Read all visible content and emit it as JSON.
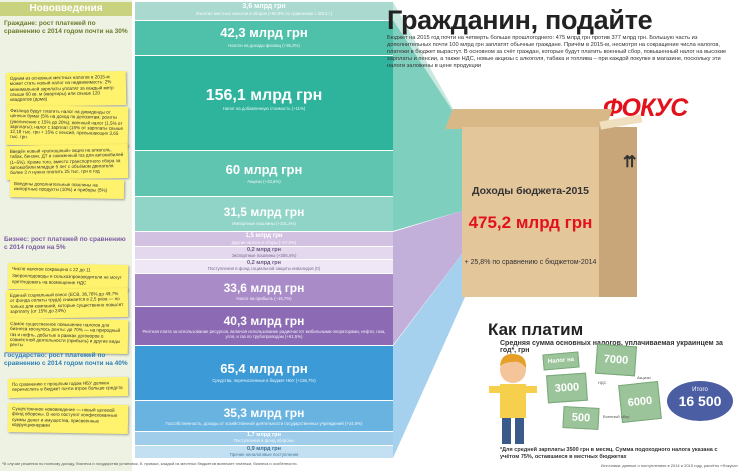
{
  "left": {
    "header": "Нововведения",
    "citizens_title": "Граждане: рост платежей по сравнению с 2014 годом почти на 30%",
    "citizens_notes": [
      "Одним из основных местных налогов в 2015-м может стать новый налог на недвижимость: 2% минимальной зарплаты уплатят за каждый метр свыше 60 кв. м (квартиры) или свыше 120 квадратов (дома)",
      "Физлица будут платить налог на дивиденды от ценных бумаг (5% на доход по депозитам; роялти (увеличение с 15% до 20%); военный налог (1,5% от зарплаты); налог с зарплат (15% от зарплаты свыше 12,18 тыс. грн + 15% с пенсий, превышающих 3,65 тыс. грн",
      "Введён новый «роскошный» акциз на алкоголь, табак, бензин, ДТ и сжиженный газ для автомобилей (1–5%). Кроме того, вместо транспортного сбора за автомобили младше 5 лет с объёмом двигателя более 3 л нужно платить 25 тыс. грн в год",
      "Введены дополнительные пошлины на импортные продукты (10%) и приборы (5%)"
    ],
    "business_title": "Бизнес: рост платежей по сравнению с 2014 годом на 5%",
    "business_notes": [
      "Число налогов сокращено с 22 до 11",
      "Звероплодоводы и сельхозпроизводители не могут претендовать на возмещение НДС",
      "Единый социальный взнос (ЕСВ, 36,76% до 49,7% от фонда оплаты труда) снижается в 2,5 раза — но только для компаний, которые существенно повысят зарплату (от 15% до 24%)",
      "Самое существенное повышение налогов для бизнеса коснулось ренты: до 70% — на природный газ и нефть, добытые в рамках договоров о совместной деятельности (прибыль) и другие виды ренты"
    ],
    "state_title": "Государство: рост платежей по сравнению с 2014 годом почти на 40%",
    "state_notes": [
      "По сравнению с прошлым годом НБУ должен перечислить в бюджет почти втрое больше средств",
      "Существенное нововведение — новый целевой фонд обороны. В него поступят конфискованные суммы денег и имущества, присвоенные коррупционерами"
    ]
  },
  "bands": [
    {
      "value": "3,6 млрд грн",
      "desc": "Изъятие местных налогов и сборов (+60,9% по сравнению с 2014 г.)"
    },
    {
      "value": "42,3 млрд грн",
      "desc": "Налоги на доходы физлиц (+35,2%)"
    },
    {
      "value": "156,1 млрд грн",
      "desc": "Налог на добавленную стоимость (+11%)"
    },
    {
      "value": "60 млрд грн",
      "desc": "Акцизы (+33,6%)"
    },
    {
      "value": "31,5 млрд грн",
      "desc": "Импортные пошлины (+101,4%)"
    },
    {
      "value": "1,5 млрд грн",
      "desc": "Другие налоги и сборы (–27,5%)"
    },
    {
      "value": "0,2 млрд грн",
      "desc": "Экспортные пошлины (+306,4%)"
    },
    {
      "value": "0,2 млрд грн",
      "desc": "Поступления в фонд социальной защиты инвалидов (0)"
    },
    {
      "value": "33,6 млрд грн",
      "desc": "Налог на прибыль (–16,7%)"
    },
    {
      "value": "40,3 млрд грн",
      "desc": "Рентная плата за использование ресурсов, включая использование радиочастот мобильными операторами, нефти, газа, угля, и газ по трубопроводам (+61,5%)"
    },
    {
      "value": "65,4 млрд грн",
      "desc": "Средства, перечисленные в бюджет НБУ (+136,7%)"
    },
    {
      "value": "35,3 млрд грн",
      "desc": "Госсобственность, доходы от хозяйственной деятельности государственных учреждений (+24,5%)"
    },
    {
      "value": "1,7 млрд грн",
      "desc": "Поступления в фонд обороны"
    },
    {
      "value": "0,9 млрд грн",
      "desc": "Прочие неналоговые поступления"
    }
  ],
  "right": {
    "title": "Гражданин, подайте",
    "intro": "Бюджет на 2015 год почти на четверть больше прошлогоднего: 475 млрд грн против 377 млрд грн. Большую часть из дополнительных почти 100 млрд грн заплатят обычные граждане. Причём в 2015-м, несмотря на сокращение числа налогов, платежи в бюджет вырастут. В основном за счёт граждан, которые будут платить военный сбор, повышенный налог на высокие зарплаты и пенсии, а также НДС, новые акцизы с алкоголя, табака и топлива – при каждой покупке в магазине, поскольку эти налоги заложены в цене продукции",
    "logo": "ФОКУС",
    "box_title": "Доходы бюджета-2015",
    "box_value": "475,2 млрд грн",
    "box_growth": "+ 25,8% по сравнению с бюджетом-2014",
    "howpay_title": "Как платим",
    "howpay_sub": "Средняя сумма основных налогов, уплачиваемая украинцем за год*, грн",
    "money": [
      "7000",
      "3000",
      "6000",
      "500"
    ],
    "money_labels": [
      "Налог на доходы",
      "НДС",
      "Акцизы",
      "Военный сбор"
    ],
    "total_label": "Итого",
    "total_value": "16 500",
    "footnote": "*Для средней зарплаты 3500 грн в месяц. Сумма подоходного налога указана с учётом 75%, оставшиеся в местных бюджетах",
    "bottom_note": "*В случае решения по полному доходу, бизнеса и государства установок, б. прямых, каждой из местных бюджетов включает платежи, бизнеса и особенности.",
    "source": "Источники: данные о поступлениях в 2014 и 2015 году, расчёты «Фокуса»"
  },
  "colors": {
    "citizens": "#1fae9a",
    "business": "#9b77be",
    "state": "#4aa2d8",
    "accent": "#e2111b"
  }
}
